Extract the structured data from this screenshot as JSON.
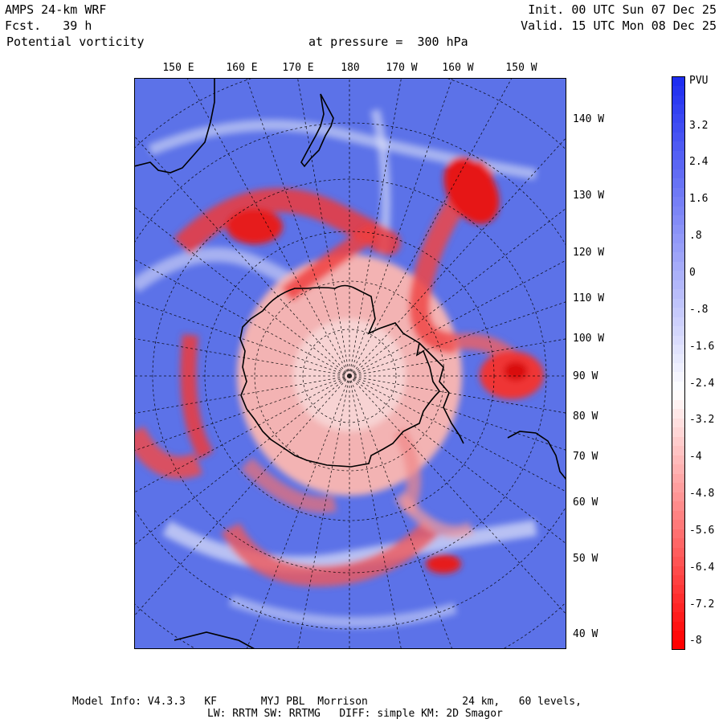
{
  "header": {
    "model": "AMPS 24-km WRF",
    "forecast": "Fcst.   39 h",
    "field": "Potential vorticity",
    "pressure": "at pressure =  300 hPa",
    "init": "Init. 00 UTC Sun 07 Dec 25",
    "valid": "Valid. 15 UTC Mon 08 Dec 25"
  },
  "map": {
    "top_longitudes": [
      "150 E",
      "160 E",
      "170 E",
      "180",
      "170 W",
      "160 W",
      "150 W"
    ],
    "right_longitudes": [
      "140 W",
      "130 W",
      "120 W",
      "110 W",
      "100 W",
      "90 W",
      "80 W",
      "70 W",
      "60 W",
      "50 W",
      "40 W"
    ]
  },
  "colorbar": {
    "unit": "PVU",
    "labels": [
      "3.2",
      "2.4",
      "1.6",
      ".8",
      "0",
      "-.8",
      "-1.6",
      "-2.4",
      "-3.2",
      "-4",
      "-4.8",
      "-5.6",
      "-6.4",
      "-7.2",
      "-8"
    ],
    "colors": {
      "pos_high": "#1f2ef0",
      "neutral": "#ffffff",
      "neg_high": "#ff0000",
      "ocean_background": "#5c72e8"
    }
  },
  "footer": {
    "line1": "Model Info: V4.3.3   KF       MYJ PBL  Morrison               24 km,   60 levels,",
    "line2": "LW: RRTM SW: RRTMG   DIFF: simple KM: 2D Smagor"
  }
}
